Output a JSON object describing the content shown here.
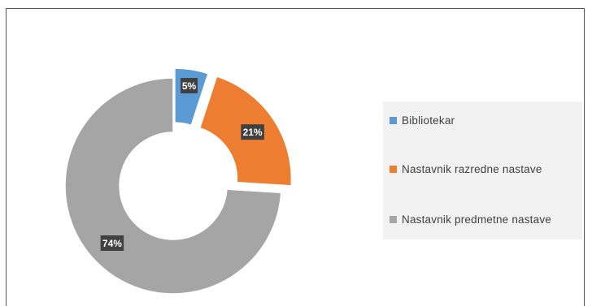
{
  "chart_data": {
    "type": "pie",
    "title": "",
    "categories": [
      "Bibliotekar",
      "Nastavnik razredne nastave",
      "Nastavnik predmetne nastave"
    ],
    "values": [
      5,
      21,
      74
    ],
    "data_labels": [
      "5%",
      "21%",
      "74%"
    ],
    "colors": [
      "#5b9bd5",
      "#ed7d31",
      "#a5a5a5"
    ],
    "style": "exploded-doughnut",
    "legend_position": "right"
  }
}
